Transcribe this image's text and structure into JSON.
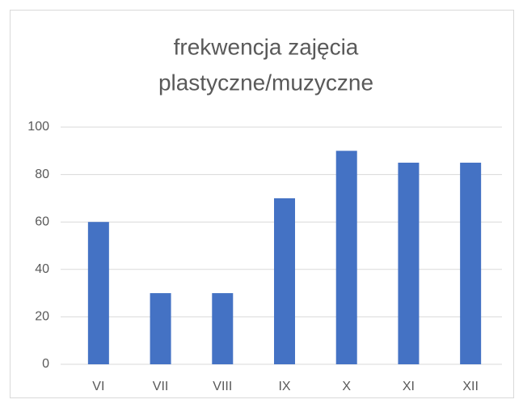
{
  "chart_data": {
    "type": "bar",
    "title": [
      "frekwencja zajęcia",
      "plastyczne/muzyczne"
    ],
    "categories": [
      "VI",
      "VII",
      "VIII",
      "IX",
      "X",
      "XI",
      "XII"
    ],
    "values": [
      60,
      30,
      30,
      70,
      90,
      85,
      85
    ],
    "color": "#4472c4",
    "ylim": [
      0,
      100
    ],
    "yticks": [
      0,
      20,
      40,
      60,
      80,
      100
    ],
    "grid": true
  }
}
